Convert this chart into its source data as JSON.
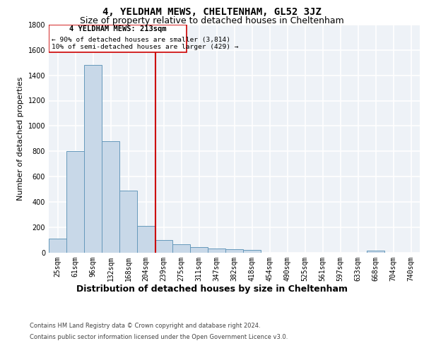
{
  "title1": "4, YELDHAM MEWS, CHELTENHAM, GL52 3JZ",
  "title2": "Size of property relative to detached houses in Cheltenham",
  "xlabel": "Distribution of detached houses by size in Cheltenham",
  "ylabel": "Number of detached properties",
  "categories": [
    "25sqm",
    "61sqm",
    "96sqm",
    "132sqm",
    "168sqm",
    "204sqm",
    "239sqm",
    "275sqm",
    "311sqm",
    "347sqm",
    "382sqm",
    "418sqm",
    "454sqm",
    "490sqm",
    "525sqm",
    "561sqm",
    "597sqm",
    "633sqm",
    "668sqm",
    "704sqm",
    "740sqm"
  ],
  "values": [
    110,
    800,
    1480,
    880,
    490,
    210,
    100,
    65,
    40,
    30,
    25,
    20,
    0,
    0,
    0,
    0,
    0,
    0,
    15,
    0,
    0
  ],
  "bar_color": "#c8d8e8",
  "bar_edge_color": "#6699bb",
  "property_name": "4 YELDHAM MEWS: 213sqm",
  "annotation_line": "← 90% of detached houses are smaller (3,814)",
  "annotation_line2": "10% of semi-detached houses are larger (429) →",
  "box_color": "#cc0000",
  "red_line_x": 5.55,
  "footer1": "Contains HM Land Registry data © Crown copyright and database right 2024.",
  "footer2": "Contains public sector information licensed under the Open Government Licence v3.0.",
  "ylim": [
    0,
    1800
  ],
  "yticks": [
    0,
    200,
    400,
    600,
    800,
    1000,
    1200,
    1400,
    1600,
    1800
  ],
  "background_color": "#eef2f7",
  "grid_color": "#ffffff",
  "title1_fontsize": 10,
  "title2_fontsize": 9,
  "ylabel_fontsize": 8,
  "xlabel_fontsize": 9,
  "tick_fontsize": 7,
  "footer_fontsize": 6
}
